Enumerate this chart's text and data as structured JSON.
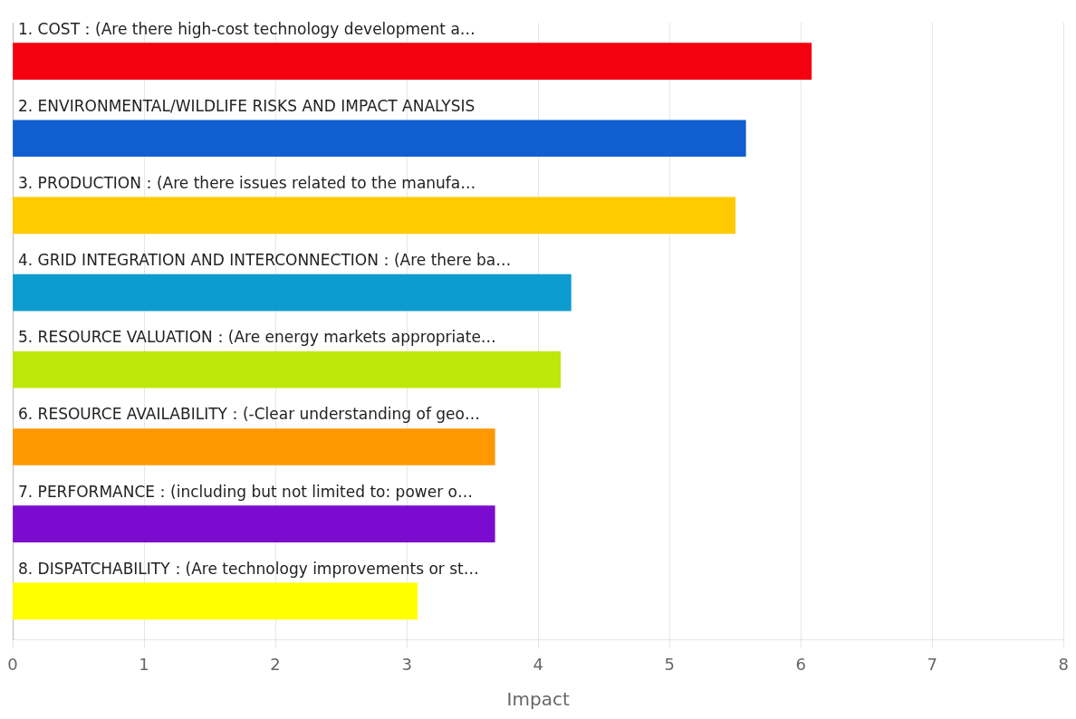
{
  "chart_data": {
    "type": "bar",
    "orientation": "horizontal",
    "xlabel": "Impact",
    "categories": [
      "1. COST：(Are there high-cost technology development a…",
      "2. ENVIRONMENTAL/WILDLIFE RISKS AND IMPACT ANALYSIS",
      "3. PRODUCTION：(Are there issues related to the manufa…",
      "4. GRID INTEGRATION AND INTERCONNECTION：(Are there ba…",
      "5. RESOURCE VALUATION：(Are energy markets appropriate…",
      "6. RESOURCE AVAILABILITY：(-Clear understanding of geo…",
      "7. PERFORMANCE：(including but not limited to: power o…",
      "8. DISPATCHABILITY：(Are technology improvements or st…"
    ],
    "values": [
      6.08,
      5.58,
      5.5,
      4.25,
      4.17,
      3.67,
      3.67,
      3.08
    ],
    "colors": [
      "#f5000f",
      "#105ecf",
      "#ffcb00",
      "#0c9ccf",
      "#bde809",
      "#ff9800",
      "#7b0ccf",
      "#ffff00"
    ],
    "xlim": [
      0,
      8
    ],
    "xticks": [
      0,
      1,
      2,
      3,
      4,
      5,
      6,
      7,
      8
    ],
    "grid": "x",
    "legend": false
  }
}
